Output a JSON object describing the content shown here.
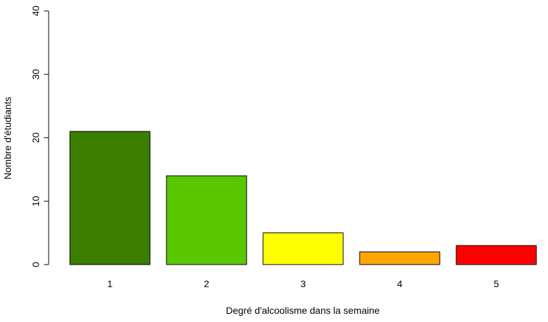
{
  "chart_data": {
    "type": "bar",
    "categories": [
      "1",
      "2",
      "3",
      "4",
      "5"
    ],
    "values": [
      21,
      14,
      5,
      2,
      3
    ],
    "colors": [
      "#3a7d00",
      "#5ac600",
      "#ffff00",
      "#ffa500",
      "#ff0000"
    ],
    "xlabel": "Degré d'alcoolisme dans la semaine",
    "ylabel": "Nombre d'étudiants",
    "ylim": [
      0,
      40
    ],
    "yticks": [
      "0",
      "10",
      "20",
      "30",
      "40"
    ],
    "grid": false
  }
}
